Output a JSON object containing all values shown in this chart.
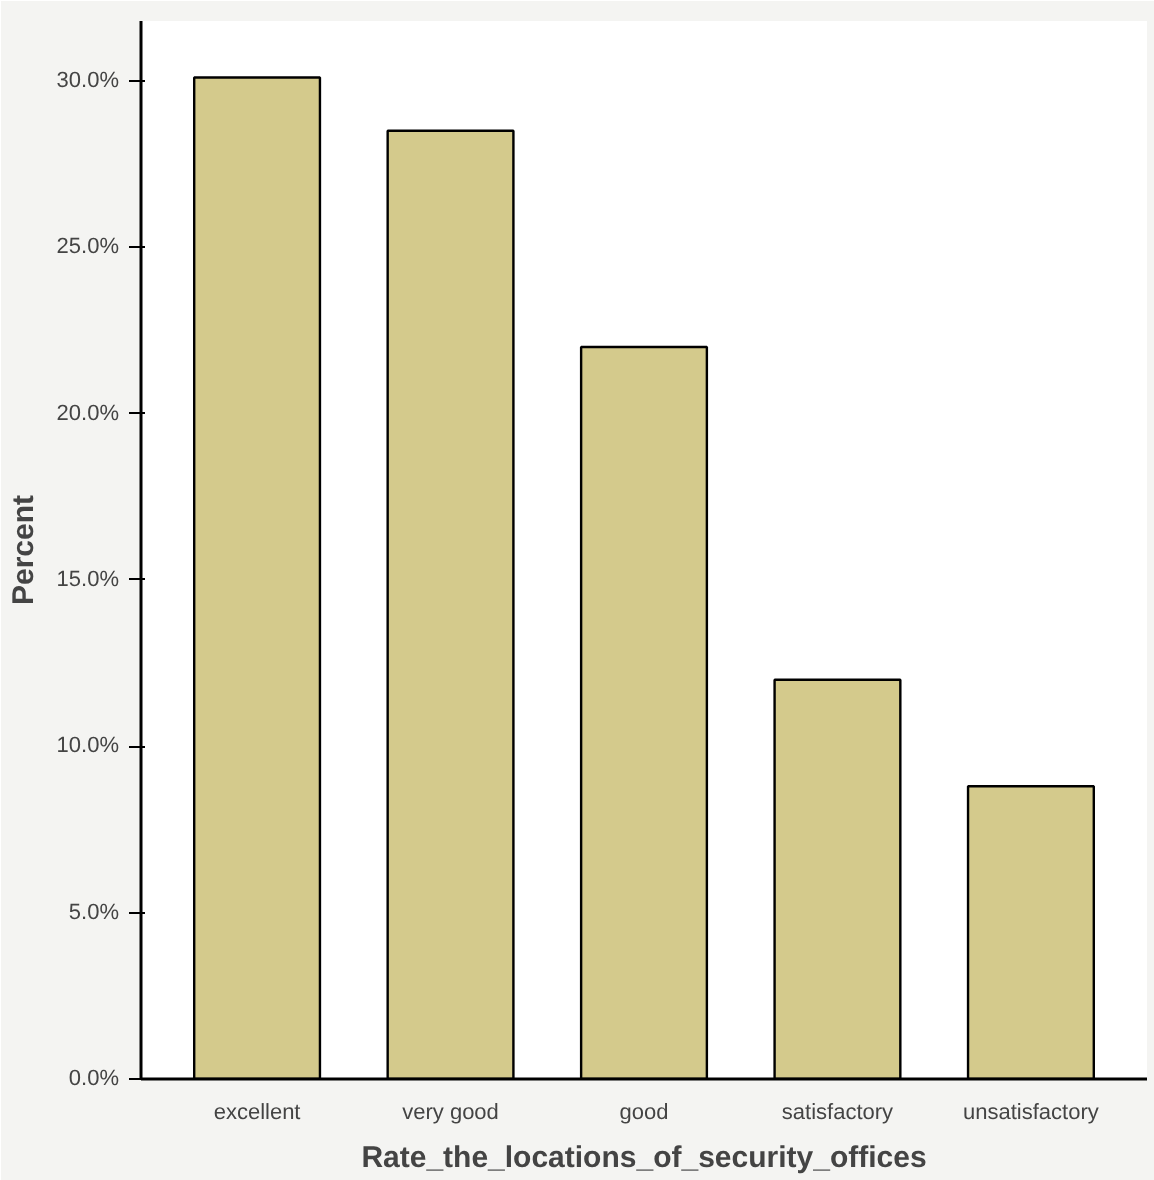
{
  "chart_data": {
    "type": "bar",
    "xlabel": "Rate_the_locations_of_security_offices",
    "ylabel": "Percent",
    "categories": [
      "excellent",
      "very good",
      "good",
      "satisfactory",
      "unsatisfactory"
    ],
    "values": [
      30.1,
      28.5,
      22.0,
      12.0,
      8.8
    ],
    "color": "#d4ca8c",
    "ylim": [
      0,
      31.8
    ],
    "yticks": [
      {
        "value": 0,
        "label": "0.0%"
      },
      {
        "value": 5,
        "label": "5.0%"
      },
      {
        "value": 10,
        "label": "10.0%"
      },
      {
        "value": 15,
        "label": "15.0%"
      },
      {
        "value": 20,
        "label": "20.0%"
      },
      {
        "value": 25,
        "label": "25.0%"
      },
      {
        "value": 30,
        "label": "30.0%"
      }
    ],
    "grid": false
  }
}
